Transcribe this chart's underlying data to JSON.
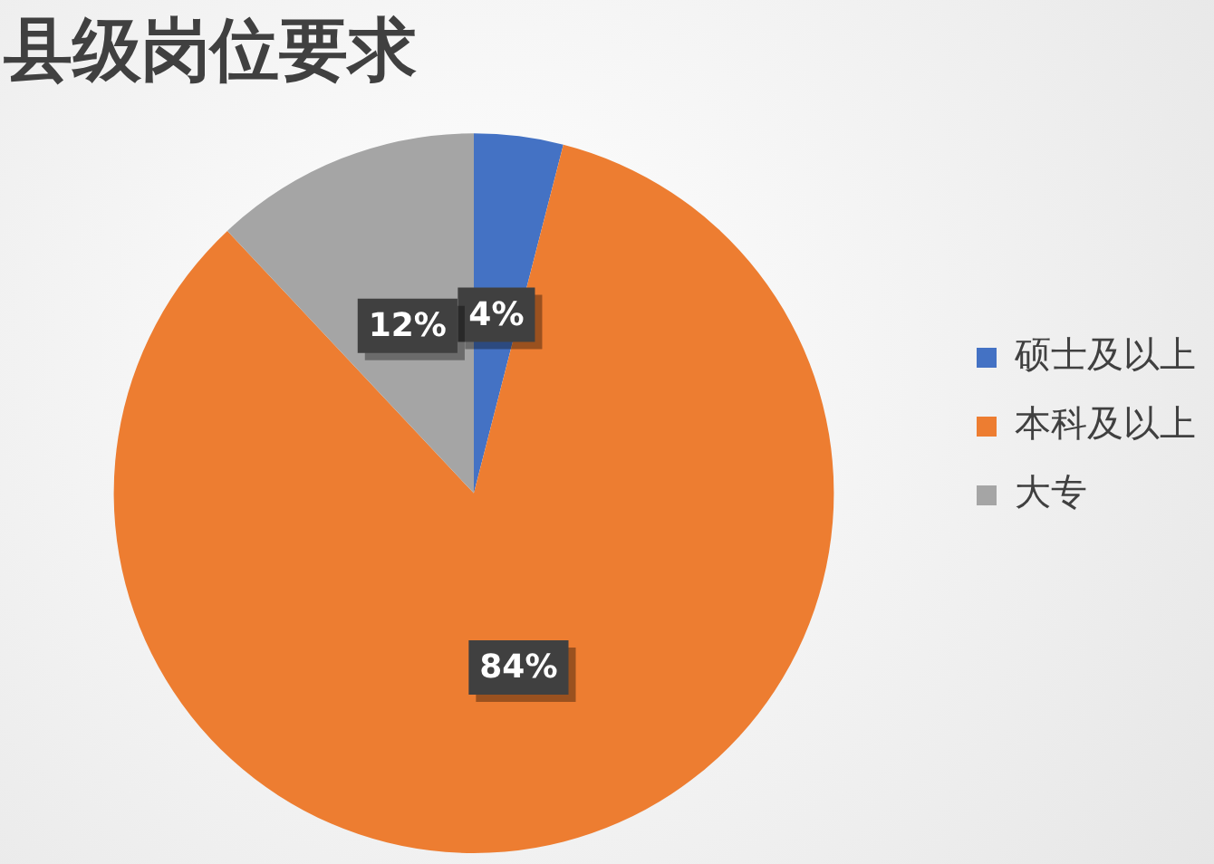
{
  "chart_data": {
    "type": "pie",
    "title": "县级岗位要求",
    "categories": [
      "硕士及以上",
      "本科及以上",
      "大专"
    ],
    "values": [
      4,
      84,
      12
    ],
    "colors": [
      "#4472c4",
      "#ed7d31",
      "#a5a5a5"
    ],
    "value_labels": [
      "4%",
      "84%",
      "12%"
    ],
    "legend": "right"
  }
}
